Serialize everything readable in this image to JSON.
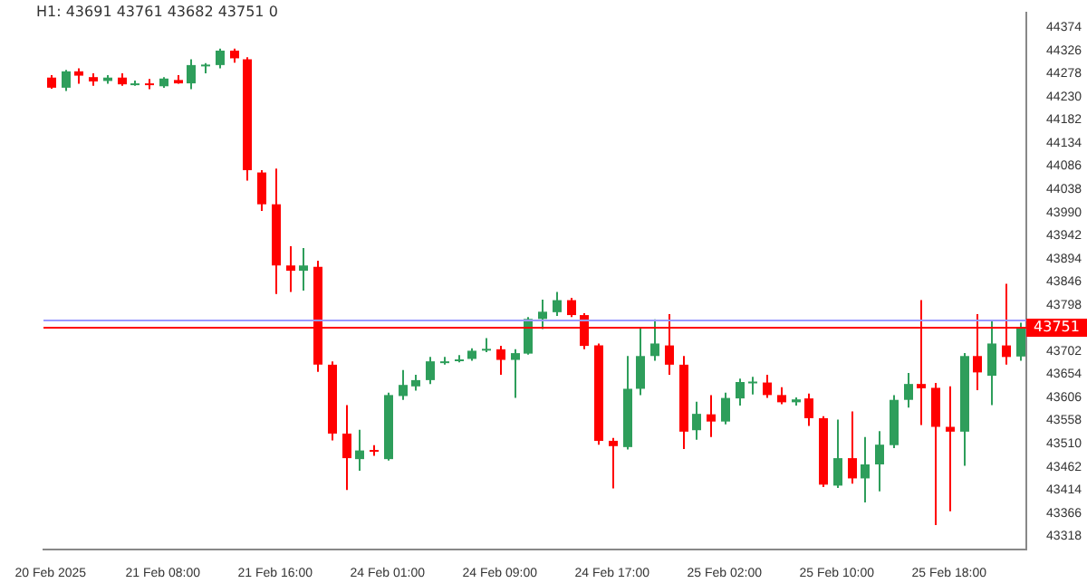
{
  "chart_data": {
    "type": "candlestick",
    "title": "H1: 43691 43761 43682 43751 0",
    "categories": [
      "20 Feb 2025",
      null,
      null,
      null,
      null,
      null,
      null,
      null,
      "21 Feb 08:00",
      null,
      null,
      null,
      null,
      null,
      null,
      null,
      "21 Feb 16:00",
      null,
      null,
      null,
      null,
      null,
      null,
      null,
      "24 Feb 01:00",
      null,
      null,
      null,
      null,
      null,
      null,
      null,
      "24 Feb 09:00",
      null,
      null,
      null,
      null,
      null,
      null,
      null,
      "24 Feb 17:00",
      null,
      null,
      null,
      null,
      null,
      null,
      null,
      "25 Feb 02:00",
      null,
      null,
      null,
      null,
      null,
      null,
      null,
      "25 Feb 10:00",
      null,
      null,
      null,
      null,
      null,
      null,
      null,
      "25 Feb 18:00",
      null,
      null,
      null,
      null,
      null
    ],
    "ohlc": [
      [
        44270,
        44275,
        44247,
        44249
      ],
      [
        44249,
        44286,
        44242,
        44283
      ],
      [
        44283,
        44289,
        44257,
        44274
      ],
      [
        44271,
        44279,
        44253,
        44262
      ],
      [
        44263,
        44275,
        44257,
        44270
      ],
      [
        44270,
        44279,
        44253,
        44256
      ],
      [
        44256,
        44264,
        44253,
        44258
      ],
      [
        44258,
        44267,
        44246,
        44255
      ],
      [
        44252,
        44271,
        44249,
        44268
      ],
      [
        44265,
        44275,
        44257,
        44258
      ],
      [
        44258,
        44308,
        44246,
        44296
      ],
      [
        44294,
        44300,
        44279,
        44297
      ],
      [
        44296,
        44330,
        44289,
        44326
      ],
      [
        44326,
        44330,
        44301,
        44310
      ],
      [
        44308,
        44312,
        44056,
        44078
      ],
      [
        44073,
        44078,
        43993,
        44007
      ],
      [
        44007,
        44081,
        43821,
        43880
      ],
      [
        43880,
        43920,
        43825,
        43869
      ],
      [
        43869,
        43916,
        43828,
        43880
      ],
      [
        43877,
        43890,
        43659,
        43674
      ],
      [
        43674,
        43681,
        43517,
        43531
      ],
      [
        43531,
        43590,
        43414,
        43480
      ],
      [
        43478,
        43539,
        43454,
        43496
      ],
      [
        43497,
        43507,
        43485,
        43495
      ],
      [
        43478,
        43616,
        43475,
        43611
      ],
      [
        43609,
        43663,
        43601,
        43632
      ],
      [
        43629,
        43653,
        43620,
        43642
      ],
      [
        43642,
        43690,
        43634,
        43681
      ],
      [
        43679,
        43690,
        43674,
        43681
      ],
      [
        43683,
        43694,
        43679,
        43685
      ],
      [
        43686,
        43708,
        43682,
        43703
      ],
      [
        43705,
        43729,
        43700,
        43707
      ],
      [
        43706,
        43713,
        43653,
        43684
      ],
      [
        43684,
        43706,
        43605,
        43698
      ],
      [
        43697,
        43773,
        43695,
        43769
      ],
      [
        43769,
        43809,
        43748,
        43784
      ],
      [
        43783,
        43825,
        43775,
        43808
      ],
      [
        43808,
        43813,
        43773,
        43777
      ],
      [
        43777,
        43781,
        43706,
        43713
      ],
      [
        43714,
        43718,
        43508,
        43516
      ],
      [
        43516,
        43522,
        43417,
        43505
      ],
      [
        43503,
        43692,
        43498,
        43624
      ],
      [
        43624,
        43750,
        43611,
        43692
      ],
      [
        43692,
        43768,
        43682,
        43718
      ],
      [
        43714,
        43779,
        43653,
        43674
      ],
      [
        43674,
        43692,
        43499,
        43535
      ],
      [
        43538,
        43597,
        43518,
        43572
      ],
      [
        43571,
        43611,
        43524,
        43556
      ],
      [
        43556,
        43616,
        43550,
        43605
      ],
      [
        43604,
        43645,
        43589,
        43638
      ],
      [
        43637,
        43649,
        43612,
        43639
      ],
      [
        43637,
        43653,
        43605,
        43611
      ],
      [
        43611,
        43627,
        43592,
        43596
      ],
      [
        43596,
        43606,
        43589,
        43602
      ],
      [
        43604,
        43614,
        43547,
        43563
      ],
      [
        43563,
        43567,
        43420,
        43425
      ],
      [
        43423,
        43560,
        43418,
        43480
      ],
      [
        43480,
        43577,
        43427,
        43438
      ],
      [
        43438,
        43524,
        43388,
        43467
      ],
      [
        43467,
        43536,
        43411,
        43508
      ],
      [
        43507,
        43611,
        43501,
        43601
      ],
      [
        43601,
        43657,
        43585,
        43634
      ],
      [
        43634,
        43808,
        43549,
        43625
      ],
      [
        43626,
        43636,
        43341,
        43545
      ],
      [
        43545,
        43629,
        43370,
        43535
      ],
      [
        43535,
        43698,
        43464,
        43692
      ],
      [
        43692,
        43779,
        43621,
        43658
      ],
      [
        43651,
        43764,
        43590,
        43718
      ],
      [
        43714,
        43842,
        43674,
        43690
      ],
      [
        43691,
        43761,
        43682,
        43751
      ]
    ],
    "colors": [
      "#ff0000",
      "#2e9e5b",
      "#ff0000",
      "#ff0000",
      "#2e9e5b",
      "#ff0000",
      "#2e9e5b",
      "#ff0000",
      "#2e9e5b",
      "#ff0000",
      "#2e9e5b",
      "#2e9e5b",
      "#2e9e5b",
      "#ff0000",
      "#ff0000",
      "#ff0000",
      "#ff0000",
      "#ff0000",
      "#2e9e5b",
      "#ff0000",
      "#ff0000",
      "#ff0000",
      "#2e9e5b",
      "#ff0000",
      "#2e9e5b",
      "#2e9e5b",
      "#2e9e5b",
      "#2e9e5b",
      "#2e9e5b",
      "#2e9e5b",
      "#2e9e5b",
      "#2e9e5b",
      "#ff0000",
      "#2e9e5b",
      "#2e9e5b",
      "#2e9e5b",
      "#2e9e5b",
      "#ff0000",
      "#ff0000",
      "#ff0000",
      "#ff0000",
      "#2e9e5b",
      "#2e9e5b",
      "#2e9e5b",
      "#ff0000",
      "#ff0000",
      "#2e9e5b",
      "#ff0000",
      "#2e9e5b",
      "#2e9e5b",
      "#2e9e5b",
      "#ff0000",
      "#ff0000",
      "#2e9e5b",
      "#ff0000",
      "#ff0000",
      "#2e9e5b",
      "#ff0000",
      "#2e9e5b",
      "#2e9e5b",
      "#2e9e5b",
      "#2e9e5b",
      "#ff0000",
      "#ff0000",
      "#ff0000",
      "#2e9e5b",
      "#ff0000",
      "#2e9e5b",
      "#ff0000",
      "#2e9e5b"
    ],
    "ylim": [
      43290,
      44404
    ],
    "yticks": [
      44374,
      44326,
      44278,
      44230,
      44182,
      44134,
      44086,
      44038,
      43990,
      43942,
      43894,
      43846,
      43798,
      43702,
      43654,
      43606,
      43558,
      43510,
      43462,
      43414,
      43366,
      43318
    ],
    "ref_lines": [
      {
        "axis": "y",
        "value": 43766,
        "color": "#9999ff"
      },
      {
        "axis": "y",
        "value": 43751,
        "label": "43751",
        "color": "#ff0000"
      }
    ],
    "grid": false,
    "legend": false
  }
}
